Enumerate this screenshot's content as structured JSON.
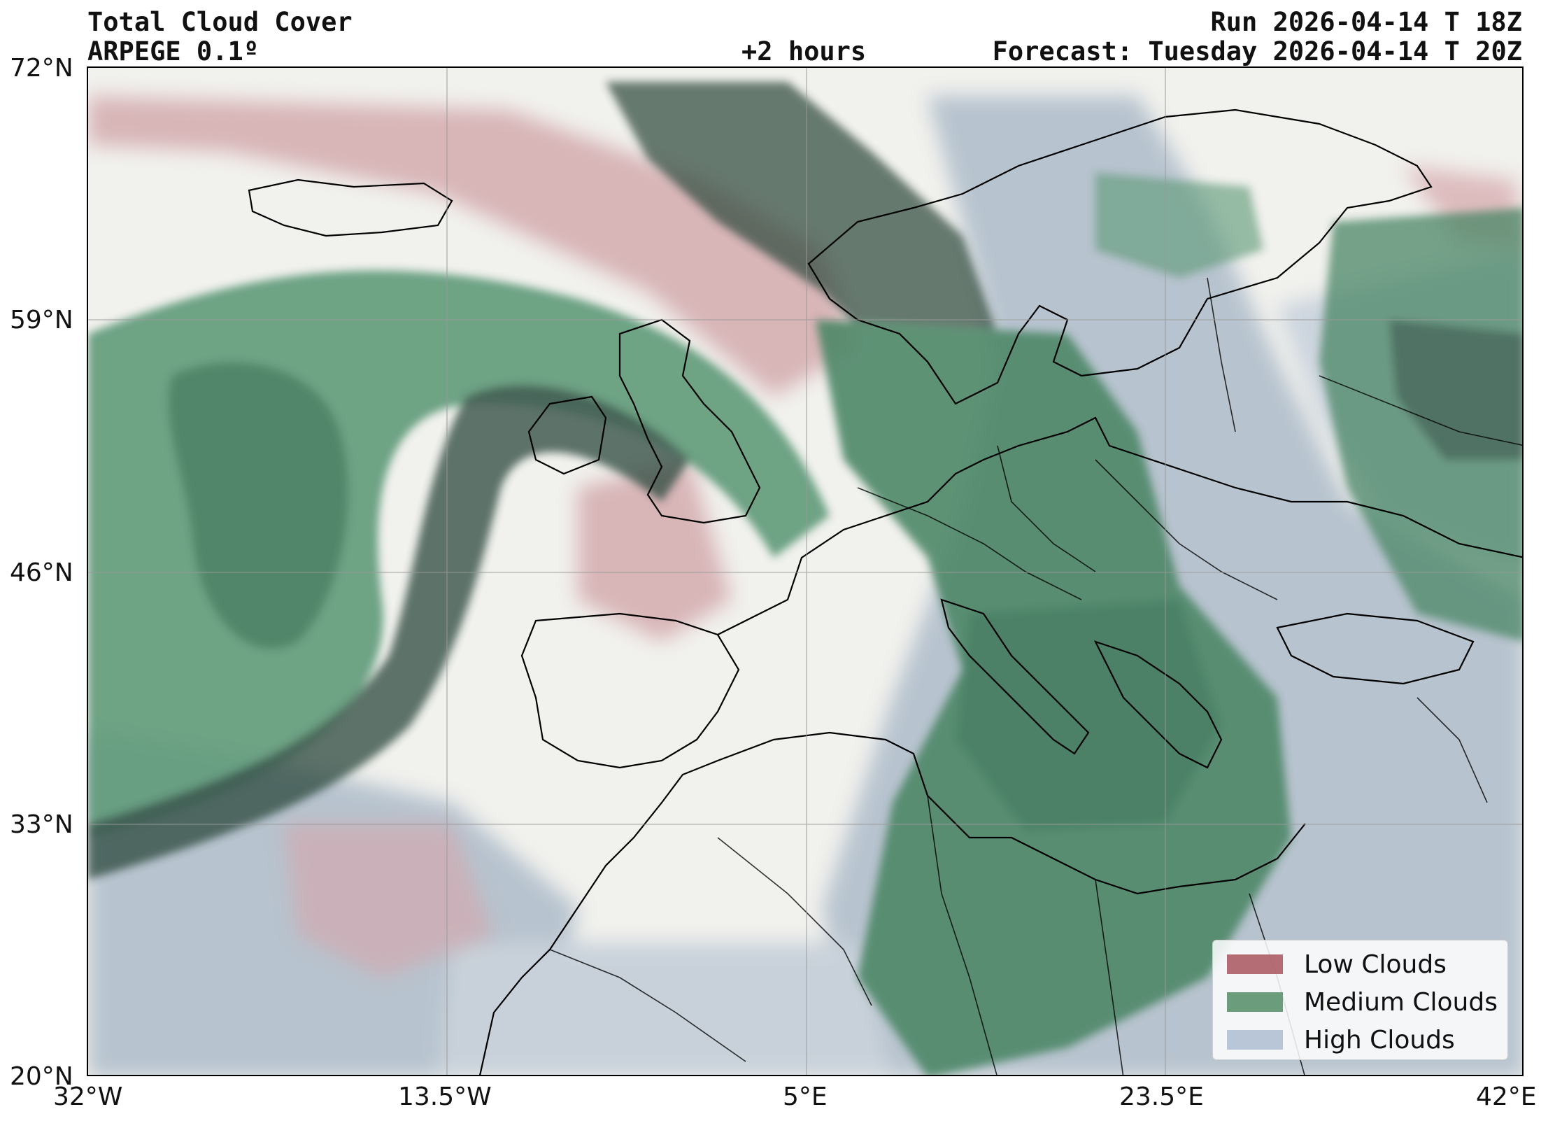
{
  "header": {
    "title": "Total Cloud Cover",
    "model": "ARPEGE 0.1º",
    "lead_time": "+2 hours",
    "run": "Run 2026-04-14 T 18Z",
    "forecast": "Forecast: Tuesday 2026-04-14 T 20Z"
  },
  "axes": {
    "lat_labels": [
      "72°N",
      "59°N",
      "46°N",
      "33°N",
      "20°N"
    ],
    "lon_labels": [
      "32°W",
      "13.5°W",
      "5°E",
      "23.5°E",
      "42°E"
    ]
  },
  "legend": {
    "items": [
      {
        "label": "Low Clouds",
        "color": "#a8555e"
      },
      {
        "label": "Medium Clouds",
        "color": "#6b9c7c"
      },
      {
        "label": "High Clouds",
        "color": "#b9c6d8"
      }
    ]
  },
  "colors": {
    "low": "#b06a72",
    "medium": "#3f7a5c",
    "medium_dark": "#2f4a40",
    "high": "#a9b8c7",
    "background": "#f1f1ed"
  }
}
